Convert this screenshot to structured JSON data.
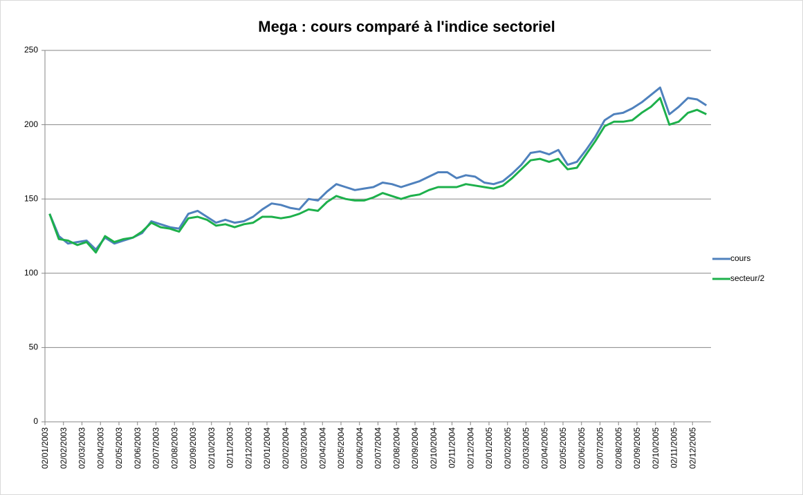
{
  "chart_data": {
    "type": "line",
    "title": "Mega : cours comparé à l'indice sectoriel",
    "categories": [
      "02/01/2003",
      null,
      "02/02/2003",
      null,
      "02/03/2003",
      null,
      "02/04/2003",
      null,
      "02/05/2003",
      null,
      "02/06/2003",
      null,
      "02/07/2003",
      null,
      "02/08/2003",
      null,
      "02/09/2003",
      null,
      "02/10/2003",
      null,
      "02/11/2003",
      null,
      "02/12/2003",
      null,
      "02/01/2004",
      null,
      "02/02/2004",
      null,
      "02/03/2004",
      null,
      "02/04/2004",
      null,
      "02/05/2004",
      null,
      "02/06/2004",
      null,
      "02/07/2004",
      null,
      "02/08/2004",
      null,
      "02/09/2004",
      null,
      "02/10/2004",
      null,
      "02/11/2004",
      null,
      "02/12/2004",
      null,
      "02/01/2005",
      null,
      "02/02/2005",
      null,
      "02/03/2005",
      null,
      "02/04/2005",
      null,
      "02/05/2005",
      null,
      "02/06/2005",
      null,
      "02/07/2005",
      null,
      "02/08/2005",
      null,
      "02/09/2005",
      null,
      "02/10/2005",
      null,
      "02/11/2005",
      null,
      "02/12/2005",
      null
    ],
    "series": [
      {
        "name": "cours",
        "color": "#4f81bd",
        "values": [
          140,
          125,
          120,
          121,
          122,
          116,
          124,
          120,
          122,
          124,
          127,
          135,
          133,
          131,
          130,
          140,
          142,
          138,
          134,
          136,
          134,
          135,
          138,
          143,
          147,
          146,
          144,
          143,
          150,
          149,
          155,
          160,
          158,
          156,
          157,
          158,
          161,
          160,
          158,
          160,
          162,
          165,
          168,
          168,
          164,
          166,
          165,
          161,
          160,
          162,
          167,
          173,
          181,
          182,
          180,
          183,
          173,
          175,
          183,
          192,
          203,
          207,
          208,
          211,
          215,
          220,
          225,
          207,
          212,
          218,
          217,
          213
        ]
      },
      {
        "name": "secteur/2",
        "color": "#1db04b",
        "values": [
          140,
          123,
          122,
          119,
          121,
          114,
          125,
          121,
          123,
          124,
          128,
          134,
          131,
          130,
          128,
          137,
          138,
          136,
          132,
          133,
          131,
          133,
          134,
          138,
          138,
          137,
          138,
          140,
          143,
          142,
          148,
          152,
          150,
          149,
          149,
          151,
          154,
          152,
          150,
          152,
          153,
          156,
          158,
          158,
          158,
          160,
          159,
          158,
          157,
          159,
          164,
          170,
          176,
          177,
          175,
          177,
          170,
          171,
          180,
          189,
          199,
          202,
          202,
          203,
          208,
          212,
          218,
          200,
          202,
          208,
          210,
          207
        ]
      }
    ],
    "ylim": [
      0,
      250
    ],
    "yticks": [
      0,
      50,
      100,
      150,
      200,
      250
    ],
    "grid": true,
    "legend": "right"
  }
}
